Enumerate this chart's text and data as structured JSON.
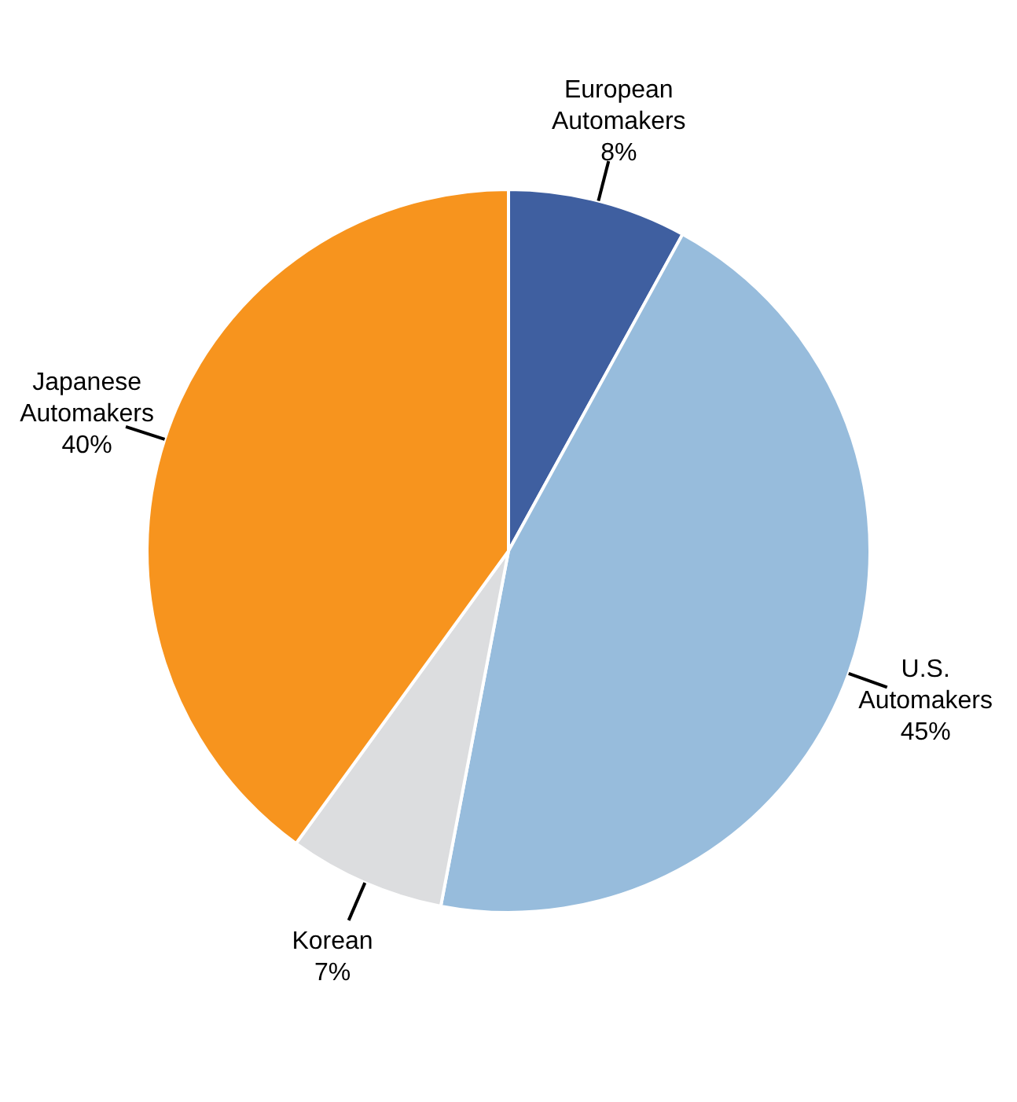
{
  "chart_data": {
    "type": "pie",
    "categories": [
      "European Automakers",
      "U.S. Automakers",
      "Korean",
      "Japanese Automakers"
    ],
    "values": [
      8,
      45,
      7,
      40
    ],
    "value_labels": [
      "8%",
      "45%",
      "7%",
      "40%"
    ],
    "colors": [
      "#3f5fa0",
      "#97bcdc",
      "#dcdddf",
      "#f7941e"
    ],
    "legend": false
  }
}
